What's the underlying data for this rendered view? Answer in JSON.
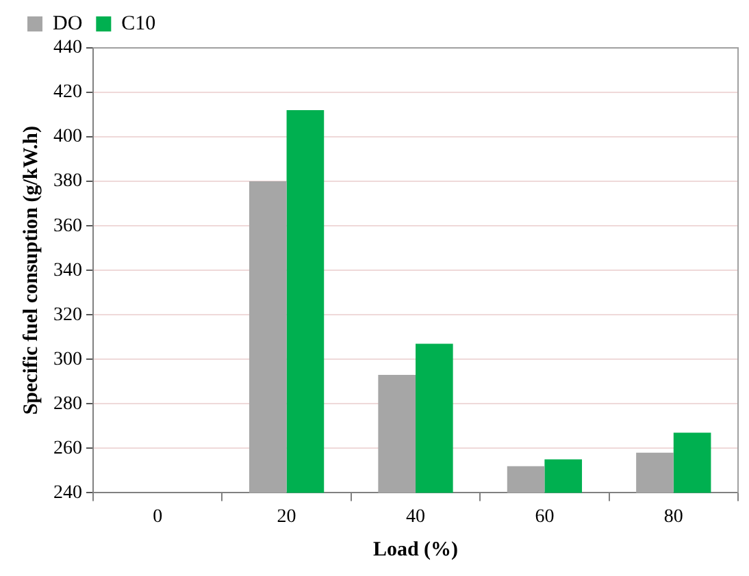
{
  "chart_data": {
    "type": "bar",
    "xlabel": "Load (%)",
    "ylabel": "Specific fuel consuption (g/kW.h)",
    "categories": [
      "0",
      "20",
      "40",
      "60",
      "80"
    ],
    "series": [
      {
        "name": "DO",
        "color": "#a6a6a6",
        "values": [
          null,
          380,
          293,
          252,
          258
        ]
      },
      {
        "name": "C10",
        "color": "#00b050",
        "values": [
          null,
          412,
          307,
          255,
          267
        ]
      }
    ],
    "ylim": [
      240,
      440
    ],
    "yticks": [
      240,
      260,
      280,
      300,
      320,
      340,
      360,
      380,
      400,
      420,
      440
    ],
    "grid": "y",
    "legend": "top left"
  }
}
